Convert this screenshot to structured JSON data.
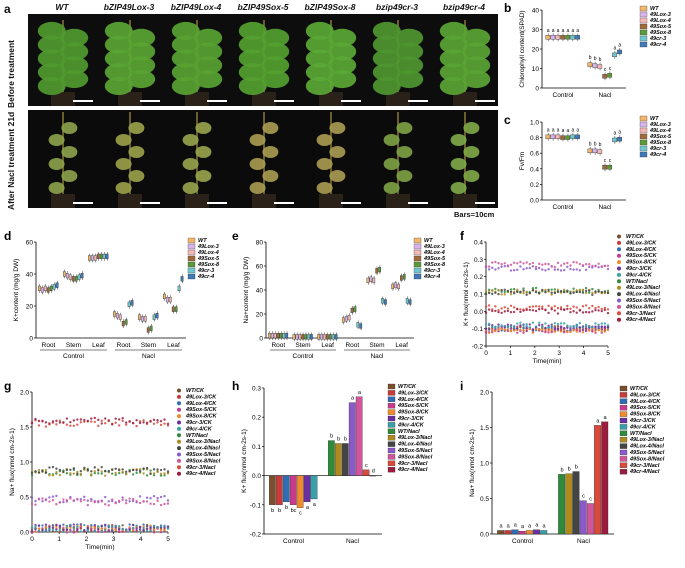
{
  "panel_a": {
    "label": "a",
    "columns": [
      "WT",
      "bZIP49Lox-3",
      "bZIP49Lox-4",
      "bZIP49Sox-5",
      "bZIP49Sox-8",
      "bzip49cr-3",
      "bzip49cr-4"
    ],
    "row_before": "Before treatment",
    "row_after": "After Nacl treatment 21d",
    "scale_note": "Bars=10cm"
  },
  "colors": {
    "WT": "#f2b66b",
    "Lox3": "#d9b3ea",
    "Lox4": "#f4b8b8",
    "Sox5": "#a06b3b",
    "Sox8": "#5a9a3a",
    "cr3": "#6fc7cf",
    "cr4": "#3f79b8"
  },
  "line_colors": [
    "#7b4f2c",
    "#c73b3b",
    "#2f6db5",
    "#c93a8e",
    "#f08a2c",
    "#6a2fa0",
    "#37a0a8",
    "#2e8b3a",
    "#b08a1e",
    "#444444",
    "#8a5acb",
    "#d1559a",
    "#d94a3a",
    "#9b1c3f"
  ],
  "chart_data": [
    {
      "id": "b",
      "type": "box",
      "title": "",
      "ylabel": "Chlorophyll content(SPAD)",
      "ylim": [
        0,
        40
      ],
      "yticks": [
        0,
        10,
        20,
        30,
        40
      ],
      "categories": [
        "Control",
        "Nacl"
      ],
      "legend": [
        "WT",
        "49Lox-3",
        "49Lox-4",
        "49Sox-5",
        "49Sox-8",
        "49cr-3",
        "49cr-4"
      ],
      "series": [
        {
          "name": "WT",
          "values": [
            26,
            12
          ]
        },
        {
          "name": "49Lox-3",
          "values": [
            26,
            11.5
          ]
        },
        {
          "name": "49Lox-4",
          "values": [
            26,
            11
          ]
        },
        {
          "name": "49Sox-5",
          "values": [
            26,
            6
          ]
        },
        {
          "name": "49Sox-8",
          "values": [
            26,
            6.5
          ]
        },
        {
          "name": "49cr-3",
          "values": [
            26,
            17
          ]
        },
        {
          "name": "49cr-4",
          "values": [
            26,
            18.5
          ]
        }
      ],
      "letters": [
        [
          "a",
          "a",
          "a",
          "a",
          "a",
          "a",
          "a"
        ],
        [
          "b",
          "b",
          "b",
          "c",
          "c",
          "a",
          "a"
        ]
      ]
    },
    {
      "id": "c",
      "type": "box",
      "ylabel": "Fv/Fm",
      "ylim": [
        0,
        1.0
      ],
      "yticks": [
        "0.0",
        "0.2",
        "0.4",
        "0.6",
        "0.8",
        "1.0"
      ],
      "categories": [
        "Control",
        "Nacl"
      ],
      "legend": [
        "WT",
        "49Lox-3",
        "49Lox-4",
        "49Sox-5",
        "49Sox-8",
        "49cr-3",
        "49cr-4"
      ],
      "series": [
        {
          "name": "WT",
          "values": [
            0.81,
            0.63
          ]
        },
        {
          "name": "49Lox-3",
          "values": [
            0.81,
            0.63
          ]
        },
        {
          "name": "49Lox-4",
          "values": [
            0.81,
            0.62
          ]
        },
        {
          "name": "49Sox-5",
          "values": [
            0.8,
            0.42
          ]
        },
        {
          "name": "49Sox-8",
          "values": [
            0.8,
            0.42
          ]
        },
        {
          "name": "49cr-3",
          "values": [
            0.81,
            0.77
          ]
        },
        {
          "name": "49cr-4",
          "values": [
            0.81,
            0.78
          ]
        }
      ],
      "letters": [
        [
          "a",
          "a",
          "a",
          "a",
          "a",
          "a",
          "a"
        ],
        [
          "b",
          "b",
          "b",
          "c",
          "c",
          "a",
          "a"
        ]
      ]
    },
    {
      "id": "d",
      "type": "box",
      "ylabel": "K+content (mg/g DW)",
      "ylim": [
        0,
        60
      ],
      "yticks": [
        0,
        20,
        40,
        60
      ],
      "categories": [
        "Root",
        "Stem",
        "Leaf",
        "Root",
        "Stem",
        "Leaf"
      ],
      "groups": [
        "Control",
        "Nacl"
      ],
      "legend": [
        "WT",
        "49Lox-3",
        "49Lox-4",
        "49Sox-5",
        "49Sox-8",
        "49cr-3",
        "49cr-4"
      ],
      "series": [
        {
          "name": "WT",
          "values": [
            31,
            40,
            50,
            15,
            13,
            26
          ]
        },
        {
          "name": "49Lox-3",
          "values": [
            30,
            39,
            50,
            14,
            12,
            24
          ]
        },
        {
          "name": "49Lox-4",
          "values": [
            31,
            38,
            50,
            13,
            12,
            24
          ]
        },
        {
          "name": "49Sox-5",
          "values": [
            30,
            37,
            51,
            9,
            5,
            18
          ]
        },
        {
          "name": "49Sox-8",
          "values": [
            31,
            37,
            51,
            10,
            6,
            18
          ]
        },
        {
          "name": "49cr-3",
          "values": [
            32,
            38,
            51,
            21,
            13,
            31
          ]
        },
        {
          "name": "49cr-4",
          "values": [
            33,
            39,
            51,
            22,
            14,
            37
          ]
        }
      ]
    },
    {
      "id": "e",
      "type": "box",
      "ylabel": "Na+content (mg/g DW)",
      "ylim": [
        0,
        80
      ],
      "yticks": [
        0,
        20,
        40,
        60,
        80
      ],
      "categories": [
        "Root",
        "Stem",
        "Leaf",
        "Root",
        "Stem",
        "Leaf"
      ],
      "groups": [
        "Control",
        "Nacl"
      ],
      "legend": [
        "WT",
        "49Lox-3",
        "49Lox-4",
        "49Sox-5",
        "49Sox-8",
        "49cr-3",
        "49cr-4"
      ],
      "series": [
        {
          "name": "WT",
          "values": [
            2,
            1,
            1,
            15,
            48,
            43
          ]
        },
        {
          "name": "49Lox-3",
          "values": [
            2,
            1,
            1,
            16,
            49,
            44
          ]
        },
        {
          "name": "49Lox-4",
          "values": [
            2,
            1,
            1,
            17,
            48,
            43
          ]
        },
        {
          "name": "49Sox-5",
          "values": [
            2,
            1,
            1,
            23,
            56,
            50
          ]
        },
        {
          "name": "49Sox-8",
          "values": [
            2,
            1,
            1,
            24,
            57,
            51
          ]
        },
        {
          "name": "49cr-3",
          "values": [
            2,
            1,
            1,
            11,
            31,
            31
          ]
        },
        {
          "name": "49cr-4",
          "values": [
            2,
            1,
            1,
            10,
            30,
            30
          ]
        }
      ]
    },
    {
      "id": "f",
      "type": "scatter",
      "ylabel": "K+ flux(nmol cm-2s-1)",
      "xlabel": "Time(min)",
      "xlim": [
        0,
        5
      ],
      "ylim": [
        -0.2,
        0.4
      ],
      "xticks": [
        0,
        1,
        2,
        3,
        4,
        5
      ],
      "yticks": [
        "-0.2",
        "-0.1",
        "0.0",
        "0.1",
        "0.2",
        "0.3",
        "0.4"
      ],
      "legend": [
        "WT/CK",
        "49Lox-3/CK",
        "49Lox-4/CK",
        "49Sox-5/CK",
        "49Sox-8/CK",
        "49cr-3/CK",
        "49cr-4/CK",
        "WT/Nacl",
        "49Lox-3/Nacl",
        "49Lox-4/Nacl",
        "49Sox-5/Nacl",
        "49Sox-8/Nacl",
        "49cr-3/Nacl",
        "49cr-4/Nacl"
      ],
      "series_means": [
        -0.1,
        -0.1,
        -0.1,
        -0.11,
        -0.11,
        -0.09,
        -0.08,
        0.12,
        0.11,
        0.11,
        0.25,
        0.27,
        0.02,
        0.0
      ]
    },
    {
      "id": "g",
      "type": "scatter",
      "ylabel": "Na+ flux(nmol cm-2s-1)",
      "xlabel": "Time(min)",
      "xlim": [
        0,
        5
      ],
      "ylim": [
        0,
        2.0
      ],
      "xticks": [
        0,
        1,
        2,
        3,
        4,
        5
      ],
      "yticks": [
        "0.0",
        "0.5",
        "1.0",
        "1.5",
        "2.0"
      ],
      "legend": [
        "WT/CK",
        "49Lox-3/CK",
        "49Lox-4/CK",
        "49Sox-5/CK",
        "49Sox-8/CK",
        "49cr-3/CK",
        "49cr-4/CK",
        "WT/Nacl",
        "49Lox-3/Nacl",
        "49Lox-4/Nacl",
        "49Sox-5/Nacl",
        "49Sox-8/Nacl",
        "49cr-3/Nacl",
        "49cr-4/Nacl"
      ],
      "series_means": [
        0.05,
        0.05,
        0.06,
        0.04,
        0.05,
        0.06,
        0.05,
        0.85,
        0.85,
        0.88,
        0.47,
        0.43,
        1.55,
        1.58
      ]
    },
    {
      "id": "h",
      "type": "bar",
      "ylabel": "K+ flux(nmol cm-2s-1)",
      "ylim": [
        -0.2,
        0.3
      ],
      "yticks": [
        "-0.2",
        "-0.1",
        "0.0",
        "0.1",
        "0.2",
        "0.3"
      ],
      "groups": [
        "Control",
        "Nacl"
      ],
      "legend": [
        "WT/CK",
        "49Lox-3/CK",
        "49Lox-4/CK",
        "49Sox-5/CK",
        "49Sox-8/CK",
        "49cr-3/CK",
        "49cr-4/CK",
        "WT/Nacl",
        "49Lox-3/Nacl",
        "49Lox-4/Nacl",
        "49Sox-5/Nacl",
        "49Sox-8/Nacl",
        "49cr-3/Nacl",
        "49cr-4/Nacl"
      ],
      "values": [
        [
          -0.1,
          -0.1,
          -0.09,
          -0.1,
          -0.11,
          -0.09,
          -0.08
        ],
        [
          0.12,
          0.11,
          0.11,
          0.25,
          0.27,
          0.02,
          0.0
        ]
      ],
      "letters": [
        [
          "b",
          "b",
          "b",
          "bc",
          "c",
          "a",
          "a"
        ],
        [
          "b",
          "b",
          "b",
          "a",
          "a",
          "c",
          "d"
        ]
      ]
    },
    {
      "id": "i",
      "type": "bar",
      "ylabel": "Na+ flux(nmol cm-2s-1)",
      "ylim": [
        0,
        2.0
      ],
      "yticks": [
        "0.0",
        "0.5",
        "1.0",
        "1.5",
        "2.0"
      ],
      "groups": [
        "Control",
        "Nacl"
      ],
      "legend": [
        "WT/CK",
        "49Lox-3/CK",
        "49Lox-4/CK",
        "49Sox-5/CK",
        "49Sox-8/CK",
        "49cr-3/CK",
        "49cr-4/CK",
        "WT/Nacl",
        "49Lox-3/Nacl",
        "49Lox-4/Nacl",
        "49Sox-5/Nacl",
        "49Sox-8/Nacl",
        "49cr-3/Nacl",
        "49cr-4/Nacl"
      ],
      "values": [
        [
          0.05,
          0.05,
          0.06,
          0.04,
          0.05,
          0.06,
          0.05
        ],
        [
          0.84,
          0.85,
          0.88,
          0.47,
          0.43,
          1.53,
          1.58
        ]
      ],
      "letters": [
        [
          "a",
          "a",
          "a",
          "a",
          "a",
          "a",
          "a"
        ],
        [
          "b",
          "b",
          "b",
          "c",
          "c",
          "a",
          "a"
        ]
      ]
    }
  ]
}
